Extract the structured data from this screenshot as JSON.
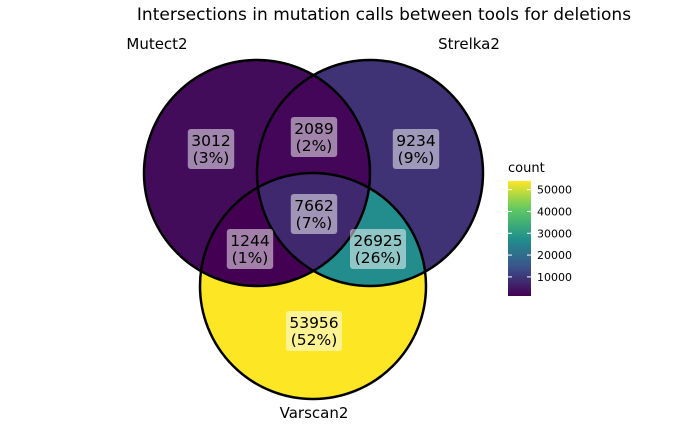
{
  "chart_data": {
    "type": "venn",
    "title": "Intersections in mutation calls between tools for deletions",
    "sets": [
      "Mutect2",
      "Strelka2",
      "Varscan2"
    ],
    "regions": [
      {
        "sets": [
          "Mutect2"
        ],
        "count": 3012,
        "percent": "(3%)"
      },
      {
        "sets": [
          "Mutect2",
          "Strelka2"
        ],
        "count": 2089,
        "percent": "(2%)"
      },
      {
        "sets": [
          "Strelka2"
        ],
        "count": 9234,
        "percent": "(9%)"
      },
      {
        "sets": [
          "Mutect2",
          "Strelka2",
          "Varscan2"
        ],
        "count": 7662,
        "percent": "(7%)"
      },
      {
        "sets": [
          "Mutect2",
          "Varscan2"
        ],
        "count": 1244,
        "percent": "(1%)"
      },
      {
        "sets": [
          "Strelka2",
          "Varscan2"
        ],
        "count": 26925,
        "percent": "(26%)"
      },
      {
        "sets": [
          "Varscan2"
        ],
        "count": 53956,
        "percent": "(52%)"
      }
    ],
    "legend": {
      "title": "count",
      "ticks": [
        10000,
        20000,
        30000,
        40000,
        50000
      ],
      "range": [
        1244,
        53956
      ],
      "placement": "right"
    },
    "colormap": [
      "#440154",
      "#3b528b",
      "#21908c",
      "#5dc863",
      "#fde725"
    ]
  }
}
